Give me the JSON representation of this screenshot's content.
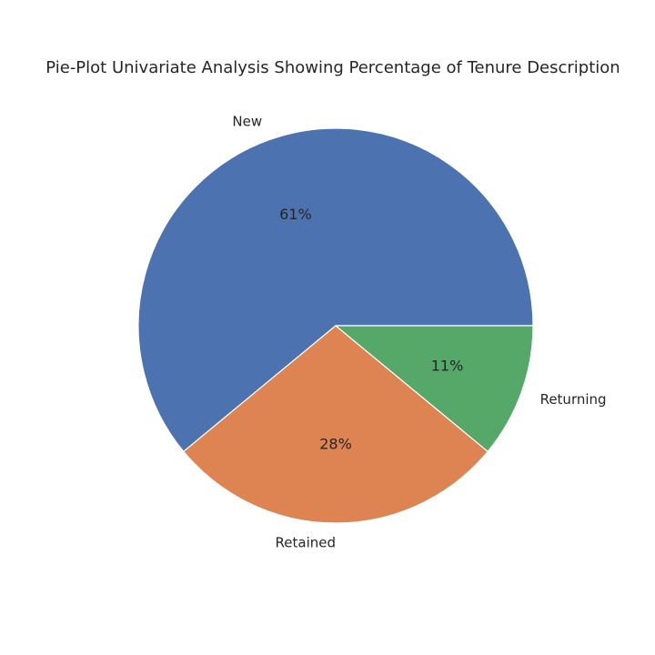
{
  "chart_data": {
    "type": "pie",
    "title": "Pie-Plot Univariate Analysis Showing Percentage of Tenure Description",
    "categories": [
      "New",
      "Retained",
      "Returning"
    ],
    "values": [
      61,
      28,
      11
    ],
    "percent_labels": [
      "61%",
      "28%",
      "11%"
    ],
    "colors": [
      "#4c72b0",
      "#dd8452",
      "#55a868"
    ],
    "start_angle_deg": 0,
    "direction": "counterclockwise",
    "legend": "none"
  }
}
